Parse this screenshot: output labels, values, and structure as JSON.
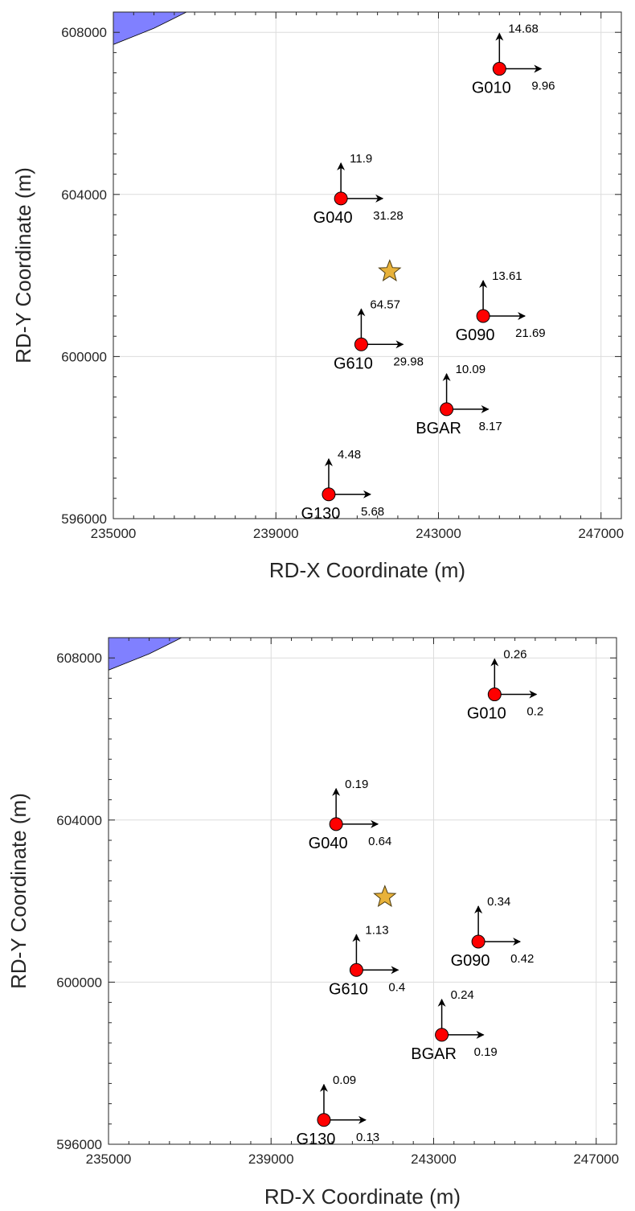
{
  "chart_data": [
    {
      "type": "scatter",
      "xlabel": "RD-X Coordinate (m)",
      "ylabel": "RD-Y Coordinate (m)",
      "xlim": [
        235000,
        247500
      ],
      "ylim": [
        596000,
        608500
      ],
      "xticks": [
        "235000",
        "239000",
        "243000",
        "247000"
      ],
      "yticks": [
        "596000",
        "600000",
        "604000",
        "608000"
      ],
      "grid": true,
      "colors": {
        "marker": "#ff0000",
        "star": "#e8b23a",
        "water": "#8080ff",
        "arrow": "#000000"
      },
      "star": {
        "x": 241800,
        "y": 602100
      },
      "water_polygon": [
        [
          235000,
          607700
        ],
        [
          235500,
          607900
        ],
        [
          236000,
          608100
        ],
        [
          236400,
          608300
        ],
        [
          236800,
          608500
        ],
        [
          235000,
          608500
        ]
      ],
      "stations": [
        {
          "name": "G010",
          "x": 244500,
          "y": 607100,
          "north": "14.68",
          "east": "9.96"
        },
        {
          "name": "G040",
          "x": 240600,
          "y": 603900,
          "north": "11.9",
          "east": "31.28"
        },
        {
          "name": "G090",
          "x": 244100,
          "y": 601000,
          "north": "13.61",
          "east": "21.69"
        },
        {
          "name": "G610",
          "x": 241100,
          "y": 600300,
          "north": "64.57",
          "east": "29.98"
        },
        {
          "name": "BGAR",
          "x": 243200,
          "y": 598700,
          "north": "10.09",
          "east": "8.17"
        },
        {
          "name": "G130",
          "x": 240300,
          "y": 596600,
          "north": "4.48",
          "east": "5.68"
        }
      ]
    },
    {
      "type": "scatter",
      "xlabel": "RD-X Coordinate (m)",
      "ylabel": "RD-Y Coordinate (m)",
      "xlim": [
        235000,
        247500
      ],
      "ylim": [
        596000,
        608500
      ],
      "xticks": [
        "235000",
        "239000",
        "243000",
        "247000"
      ],
      "yticks": [
        "596000",
        "600000",
        "604000",
        "608000"
      ],
      "grid": true,
      "colors": {
        "marker": "#ff0000",
        "star": "#e8b23a",
        "water": "#8080ff",
        "arrow": "#000000"
      },
      "star": {
        "x": 241800,
        "y": 602100
      },
      "water_polygon": [
        [
          235000,
          607700
        ],
        [
          235500,
          607900
        ],
        [
          236000,
          608100
        ],
        [
          236400,
          608300
        ],
        [
          236800,
          608500
        ],
        [
          235000,
          608500
        ]
      ],
      "stations": [
        {
          "name": "G010",
          "x": 244500,
          "y": 607100,
          "north": "0.26",
          "east": "0.2"
        },
        {
          "name": "G040",
          "x": 240600,
          "y": 603900,
          "north": "0.19",
          "east": "0.64"
        },
        {
          "name": "G090",
          "x": 244100,
          "y": 601000,
          "north": "0.34",
          "east": "0.42"
        },
        {
          "name": "G610",
          "x": 241100,
          "y": 600300,
          "north": "1.13",
          "east": "0.4"
        },
        {
          "name": "BGAR",
          "x": 243200,
          "y": 598700,
          "north": "0.24",
          "east": "0.19"
        },
        {
          "name": "G130",
          "x": 240300,
          "y": 596600,
          "north": "0.09",
          "east": "0.13"
        }
      ]
    }
  ]
}
